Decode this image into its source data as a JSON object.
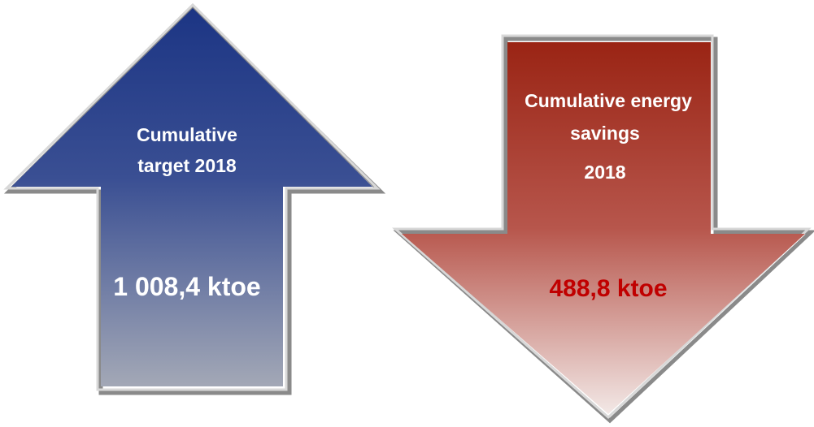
{
  "target_arrow": {
    "direction": "up",
    "label_line1": "Cumulative",
    "label_line2": "target 2018",
    "value": "1 008,4 ktoe",
    "label_color": "#ffffff",
    "value_color": "#ffffff",
    "fill_top": "#1c3584",
    "fill_bottom": "#a3a8b6"
  },
  "savings_arrow": {
    "direction": "down",
    "label_line1": "Cumulative energy",
    "label_line2": "savings",
    "label_line3": "2018",
    "value": "488,8 ktoe",
    "label_color": "#ffffff",
    "value_color": "#c00000",
    "fill_top": "#9a2414",
    "fill_bottom": "#f2e8e6"
  }
}
